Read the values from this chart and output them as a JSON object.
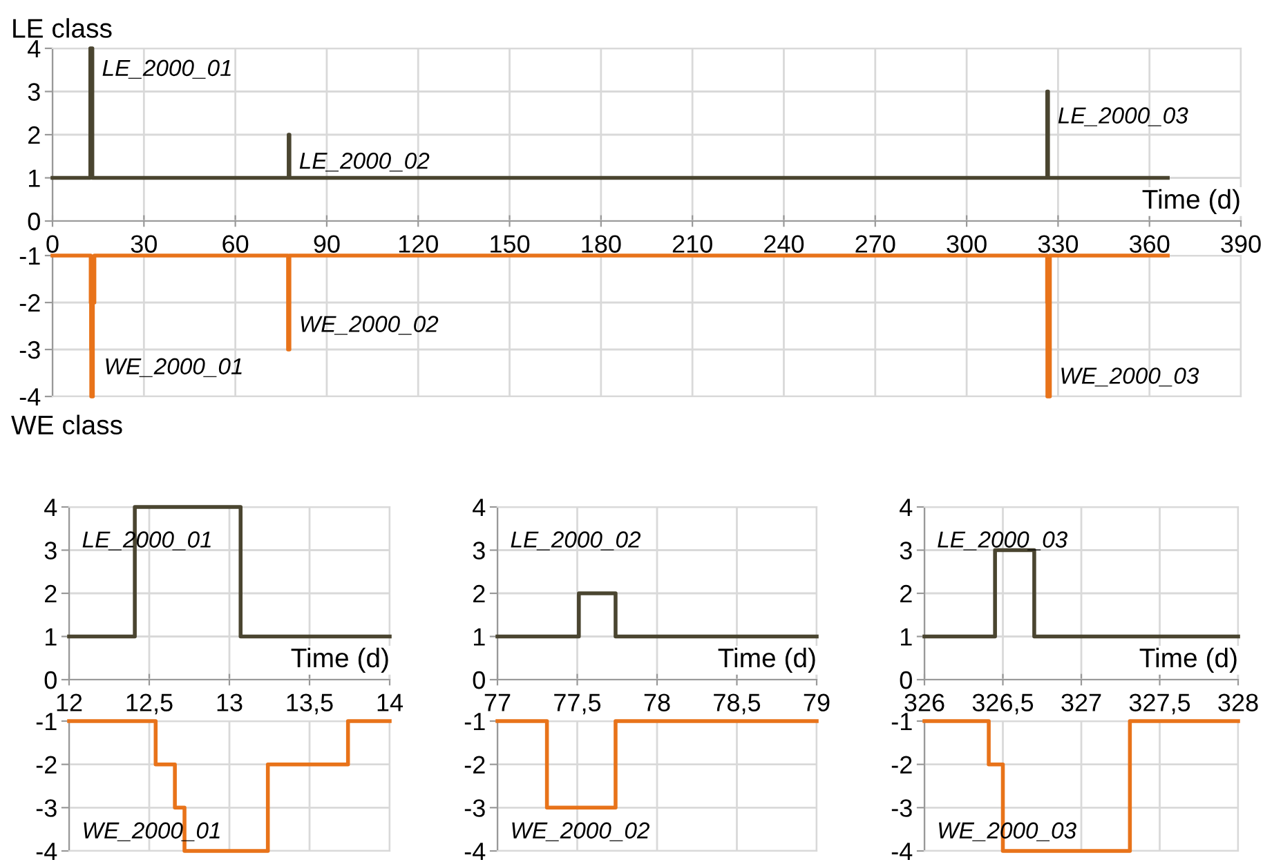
{
  "chart_data": [
    {
      "type": "step",
      "title": "LE class",
      "xlabel": "Time (d)",
      "x": [
        0,
        12.41,
        13.07,
        77.51,
        77.74,
        326.45,
        326.7,
        366
      ],
      "series": [
        {
          "color": "#4a4530",
          "values": [
            1,
            4,
            1,
            2,
            1,
            3,
            1,
            1
          ]
        }
      ],
      "xlim": [
        0,
        390
      ],
      "xticks": [
        0,
        30,
        60,
        90,
        120,
        150,
        180,
        210,
        240,
        270,
        300,
        330,
        360,
        390
      ],
      "ylim": [
        0,
        4
      ],
      "yticks": [
        0,
        1,
        2,
        3,
        4
      ],
      "grid": true,
      "annotations": [
        {
          "text": "LE_2000_01",
          "x": 13.07,
          "y": 3.5
        },
        {
          "text": "LE_2000_02",
          "x": 77.74,
          "y": 1.35
        },
        {
          "text": "LE_2000_03",
          "x": 326.7,
          "y": 2.4
        }
      ]
    },
    {
      "type": "step",
      "title": "WE class",
      "x": [
        0,
        12.54,
        12.66,
        12.72,
        13.24,
        13.74,
        77.31,
        77.74,
        326.41,
        326.5,
        327.31,
        366
      ],
      "series": [
        {
          "color": "#e8731a",
          "values": [
            -1,
            -2,
            -3,
            -4,
            -2,
            -1,
            -3,
            -1,
            -2,
            -4,
            -1,
            -1
          ]
        }
      ],
      "xlim": [
        0,
        390
      ],
      "xticks": [
        0,
        30,
        60,
        90,
        120,
        150,
        180,
        210,
        240,
        270,
        300,
        330,
        360,
        390
      ],
      "ylim": [
        -4,
        -1
      ],
      "yticks": [
        -4,
        -3,
        -2,
        -1
      ],
      "grid": true,
      "tick_labels": "y",
      "annotations": [
        {
          "text": "WE_2000_01",
          "x": 13.74,
          "y": -3.4
        },
        {
          "text": "WE_2000_02",
          "x": 77.74,
          "y": -2.5
        },
        {
          "text": "WE_2000_03",
          "x": 327.31,
          "y": -3.6
        }
      ]
    },
    {
      "type": "step",
      "xlabel": "Time (d)",
      "x": [
        12,
        12.41,
        13.07,
        14
      ],
      "series": [
        {
          "color": "#4a4530",
          "values": [
            1,
            4,
            1,
            1
          ]
        }
      ],
      "xlim": [
        12,
        14
      ],
      "xticks": [
        12,
        {
          "value": 12.5,
          "label": "12,5"
        },
        13,
        {
          "value": 13.5,
          "label": "13,5"
        },
        14
      ],
      "ylim": [
        0,
        4
      ],
      "yticks": [
        0,
        1,
        2,
        3,
        4
      ],
      "grid": true,
      "annotations": [
        "LE_2000_01"
      ]
    },
    {
      "type": "step",
      "x": [
        12,
        12.54,
        12.66,
        12.72,
        13.24,
        13.74,
        14
      ],
      "series": [
        {
          "color": "#e8731a",
          "values": [
            -1,
            -2,
            -3,
            -4,
            -2,
            -1,
            -1
          ]
        }
      ],
      "xlim": [
        12,
        14
      ],
      "xticks": [
        12,
        12.5,
        13,
        13.5,
        14
      ],
      "ylim": [
        -4,
        -1
      ],
      "yticks": [
        -4,
        -3,
        -2,
        -1
      ],
      "grid": true,
      "tick_labels": "y",
      "annotations": [
        "WE_2000_01"
      ]
    },
    {
      "type": "step",
      "xlabel": "Time (d)",
      "x": [
        77,
        77.51,
        77.74,
        79
      ],
      "series": [
        {
          "color": "#4a4530",
          "values": [
            1,
            2,
            1,
            1
          ]
        }
      ],
      "xlim": [
        77,
        79
      ],
      "xticks": [
        77,
        {
          "value": 77.5,
          "label": "77,5"
        },
        78,
        {
          "value": 78.5,
          "label": "78,5"
        },
        79
      ],
      "ylim": [
        0,
        4
      ],
      "yticks": [
        0,
        1,
        2,
        3,
        4
      ],
      "grid": true,
      "annotations": [
        "LE_2000_02"
      ]
    },
    {
      "type": "step",
      "x": [
        77,
        77.31,
        77.74,
        79
      ],
      "series": [
        {
          "color": "#e8731a",
          "values": [
            -1,
            -3,
            -1,
            -1
          ]
        }
      ],
      "xlim": [
        77,
        79
      ],
      "xticks": [
        77,
        77.5,
        78,
        78.5,
        79
      ],
      "ylim": [
        -4,
        -1
      ],
      "yticks": [
        -4,
        -3,
        -2,
        -1
      ],
      "grid": true,
      "tick_labels": "y",
      "annotations": [
        "WE_2000_02"
      ]
    },
    {
      "type": "step",
      "xlabel": "Time (d)",
      "x": [
        326,
        326.45,
        326.7,
        328
      ],
      "series": [
        {
          "color": "#4a4530",
          "values": [
            1,
            3,
            1,
            1
          ]
        }
      ],
      "xlim": [
        326,
        328
      ],
      "xticks": [
        326,
        {
          "value": 326.5,
          "label": "326,5"
        },
        327,
        {
          "value": 327.5,
          "label": "327,5"
        },
        328
      ],
      "ylim": [
        0,
        4
      ],
      "yticks": [
        0,
        1,
        2,
        3,
        4
      ],
      "grid": true,
      "annotations": [
        "LE_2000_03"
      ]
    },
    {
      "type": "step",
      "x": [
        326,
        326.41,
        326.5,
        327.31,
        328
      ],
      "series": [
        {
          "color": "#e8731a",
          "values": [
            -1,
            -2,
            -4,
            -1,
            -1
          ]
        }
      ],
      "xlim": [
        326,
        328
      ],
      "xticks": [
        326,
        326.5,
        327,
        327.5,
        328
      ],
      "ylim": [
        -4,
        -1
      ],
      "yticks": [
        -4,
        -3,
        -2,
        -1
      ],
      "grid": true,
      "tick_labels": "y",
      "annotations": [
        "WE_2000_03"
      ]
    }
  ]
}
